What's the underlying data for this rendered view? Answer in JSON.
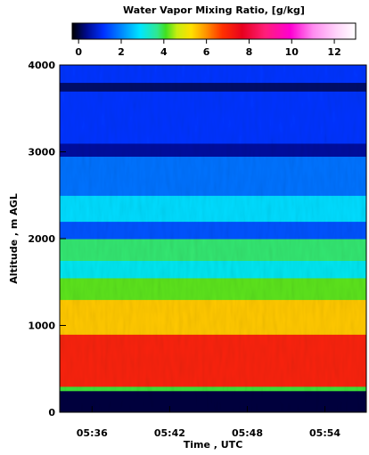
{
  "chart_data": {
    "type": "heatmap",
    "title": "Water Vapor Mixing Ratio, [g/kg]",
    "xlabel": "Time , UTC",
    "ylabel": "Altitude , m AGL",
    "x_ticks": [
      "05:36",
      "05:42",
      "05:48",
      "05:54"
    ],
    "x_tick_minutes": [
      336,
      342,
      348,
      354
    ],
    "xlim_minutes": [
      333.5,
      357.2
    ],
    "y_ticks": [
      "0",
      "1000",
      "2000",
      "3000",
      "4000"
    ],
    "y_tick_values": [
      0,
      1000,
      2000,
      3000,
      4000
    ],
    "ylim": [
      0,
      4000
    ],
    "colorbar": {
      "ticks": [
        "0",
        "2",
        "4",
        "6",
        "8",
        "10",
        "12"
      ],
      "tick_values": [
        0,
        2,
        4,
        6,
        8,
        10,
        12
      ],
      "range": [
        -0.3,
        13
      ]
    },
    "layers": [
      {
        "altitude_range_m": [
          0,
          250
        ],
        "mixing_ratio_g_kg": 0
      },
      {
        "altitude_range_m": [
          250,
          300
        ],
        "mixing_ratio_g_kg": 4
      },
      {
        "altitude_range_m": [
          300,
          900
        ],
        "mixing_ratio_g_kg": 7
      },
      {
        "altitude_range_m": [
          900,
          1300
        ],
        "mixing_ratio_g_kg": 5.5
      },
      {
        "altitude_range_m": [
          1300,
          1550
        ],
        "mixing_ratio_g_kg": 4.2
      },
      {
        "altitude_range_m": [
          1550,
          1750
        ],
        "mixing_ratio_g_kg": 3
      },
      {
        "altitude_range_m": [
          1750,
          2000
        ],
        "mixing_ratio_g_kg": 3.8
      },
      {
        "altitude_range_m": [
          2000,
          2200
        ],
        "mixing_ratio_g_kg": 1.5
      },
      {
        "altitude_range_m": [
          2200,
          2500
        ],
        "mixing_ratio_g_kg": 2.8
      },
      {
        "altitude_range_m": [
          2500,
          2950
        ],
        "mixing_ratio_g_kg": 1.8
      },
      {
        "altitude_range_m": [
          2950,
          3100
        ],
        "mixing_ratio_g_kg": 0.5
      },
      {
        "altitude_range_m": [
          3100,
          3700
        ],
        "mixing_ratio_g_kg": 1.2
      },
      {
        "altitude_range_m": [
          3700,
          3800
        ],
        "mixing_ratio_g_kg": 0.2
      },
      {
        "altitude_range_m": [
          3800,
          4000
        ],
        "mixing_ratio_g_kg": 1.2
      }
    ]
  }
}
